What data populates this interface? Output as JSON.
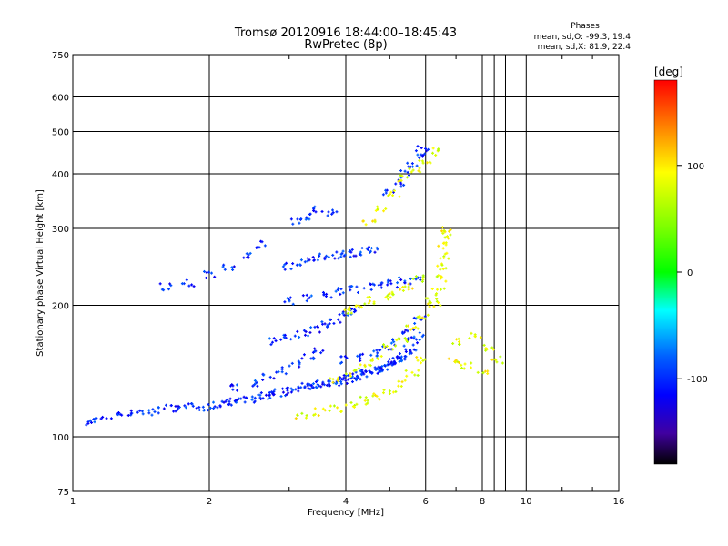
{
  "header": {
    "title": "Tromsø 20120916 18:44:00–18:45:43",
    "subtitle": "RwPretec (8p)"
  },
  "stats": {
    "heading": "Phases",
    "line_o": "mean, sd,O: -99.3, 19.4",
    "line_x": "mean, sd,X:  81.9, 22.4"
  },
  "colorbar": {
    "unit_label": "[deg]",
    "tick_labels": [
      "100",
      "0",
      "-100"
    ],
    "tick_values": [
      100,
      0,
      -100
    ],
    "range": [
      -180,
      180
    ]
  },
  "chart_data": {
    "type": "scatter",
    "title": "Tromsø 20120916 18:44:00–18:45:43",
    "subtitle": "RwPretec (8p)",
    "xlabel": "Frequency [MHz]",
    "ylabel": "Stationary phase Virtual Height [km]",
    "xscale": "log",
    "yscale": "log",
    "xlim": [
      1,
      16
    ],
    "ylim": [
      75,
      750
    ],
    "grid": true,
    "xticks": [
      1,
      2,
      4,
      6,
      8,
      10,
      16
    ],
    "xtick_labels": [
      "1",
      "2",
      "4",
      "6",
      "8",
      "10",
      "16"
    ],
    "yticks": [
      75,
      100,
      200,
      300,
      400,
      500,
      600,
      750
    ],
    "ytick_labels": [
      "75",
      "100",
      "200",
      "300",
      "400",
      "500",
      "600",
      "750"
    ],
    "series": [
      {
        "mode": "O",
        "color_phase_mean": -100,
        "x": [
          1.1,
          1.15,
          1.25,
          1.35,
          1.45,
          1.55,
          1.65,
          1.75,
          1.85,
          1.95,
          2.05,
          2.15,
          2.25,
          2.35,
          2.45,
          2.55,
          2.65,
          2.75,
          2.85,
          2.95,
          3.05,
          3.15,
          3.25,
          3.35,
          3.45,
          3.55,
          3.65,
          3.75,
          3.85,
          3.95,
          4.05,
          4.15,
          4.25,
          4.35,
          4.45,
          4.55,
          4.65,
          4.75,
          4.85,
          4.95,
          5.05,
          5.15,
          5.25,
          5.35,
          5.45,
          5.55,
          5.65,
          5.75
        ],
        "y": [
          108,
          110,
          112,
          113,
          114,
          115,
          116,
          116,
          117,
          117,
          118,
          119,
          120,
          121,
          122,
          123,
          124,
          125,
          126,
          127,
          128,
          129,
          130,
          131,
          131,
          132,
          132,
          133,
          134,
          135,
          136,
          137,
          138,
          139,
          140,
          141,
          142,
          143,
          144,
          145,
          147,
          149,
          151,
          153,
          155,
          160,
          165,
          170
        ]
      },
      {
        "mode": "O",
        "color_phase_mean": -100,
        "x": [
          1.6,
          1.8,
          2.0,
          2.2,
          2.4,
          2.6
        ],
        "y": [
          220,
          225,
          235,
          245,
          260,
          275
        ]
      },
      {
        "mode": "O",
        "color_phase_mean": -100,
        "x": [
          2.3,
          2.5,
          2.7,
          2.9,
          3.1,
          3.3,
          3.5
        ],
        "y": [
          130,
          133,
          137,
          142,
          147,
          152,
          158
        ]
      },
      {
        "mode": "O",
        "color_phase_mean": -100,
        "x": [
          2.8,
          3.0,
          3.2,
          3.4,
          3.6,
          3.8,
          4.0,
          4.2
        ],
        "y": [
          165,
          168,
          172,
          176,
          180,
          185,
          190,
          195
        ]
      },
      {
        "mode": "O",
        "color_phase_mean": -100,
        "x": [
          3.0,
          3.3,
          3.6,
          3.9,
          4.2,
          4.5,
          4.8,
          5.1,
          5.4,
          5.7
        ],
        "y": [
          205,
          208,
          212,
          216,
          218,
          220,
          222,
          224,
          228,
          232
        ]
      },
      {
        "mode": "O",
        "color_phase_mean": -100,
        "x": [
          3.0,
          3.2,
          3.4,
          3.6,
          3.8,
          4.0,
          4.2,
          4.4,
          4.6
        ],
        "y": [
          245,
          250,
          255,
          258,
          260,
          262,
          264,
          266,
          268
        ]
      },
      {
        "mode": "O",
        "color_phase_mean": -100,
        "x": [
          3.1,
          3.3,
          3.5,
          3.7
        ],
        "y": [
          310,
          320,
          330,
          325
        ]
      },
      {
        "mode": "O",
        "color_phase_mean": -100,
        "x": [
          4.0,
          4.3,
          4.6,
          4.9,
          5.2,
          5.5,
          5.8
        ],
        "y": [
          150,
          152,
          155,
          158,
          165,
          175,
          185
        ]
      },
      {
        "mode": "O",
        "color_phase_mean": -100,
        "x": [
          5.0,
          5.2,
          5.4,
          5.6,
          5.8,
          5.9
        ],
        "y": [
          360,
          380,
          400,
          420,
          440,
          460
        ]
      },
      {
        "mode": "X",
        "color_phase_mean": 85,
        "x": [
          3.2,
          3.5,
          3.8,
          4.1,
          4.4,
          4.7,
          5.0,
          5.3,
          5.6,
          5.9
        ],
        "y": [
          112,
          114,
          116,
          118,
          121,
          124,
          128,
          133,
          140,
          150
        ]
      },
      {
        "mode": "X",
        "color_phase_mean": 85,
        "x": [
          3.8,
          4.1,
          4.4,
          4.7,
          5.0,
          5.3,
          5.6,
          5.9,
          6.2
        ],
        "y": [
          135,
          140,
          146,
          152,
          160,
          168,
          178,
          190,
          205
        ]
      },
      {
        "mode": "X",
        "color_phase_mean": 85,
        "x": [
          4.0,
          4.3,
          4.6,
          4.9,
          5.2,
          5.5,
          5.8
        ],
        "y": [
          195,
          200,
          205,
          210,
          215,
          220,
          230
        ]
      },
      {
        "mode": "X",
        "color_phase_mean": 85,
        "x": [
          4.5,
          4.8,
          5.1,
          5.4,
          5.7,
          6.0,
          6.3
        ],
        "y": [
          310,
          330,
          360,
          390,
          410,
          430,
          450
        ]
      },
      {
        "mode": "X",
        "color_phase_mean": 85,
        "x": [
          6.3,
          6.4,
          6.5,
          6.5,
          6.6,
          6.6,
          6.7,
          6.7
        ],
        "y": [
          200,
          215,
          230,
          245,
          260,
          275,
          290,
          300
        ]
      },
      {
        "mode": "X",
        "color_phase_mean": 85,
        "x": [
          6.9,
          7.1,
          7.4,
          7.7,
          8.0,
          8.3,
          8.6
        ],
        "y": [
          150,
          165,
          145,
          170,
          140,
          160,
          150
        ]
      }
    ],
    "legend_position": "top-right"
  }
}
